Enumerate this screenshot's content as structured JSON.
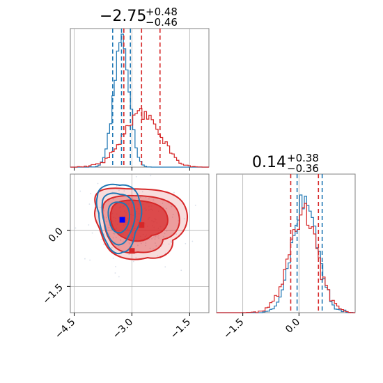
{
  "chart_data": [
    {
      "type": "histogram",
      "panel": "x-marginal",
      "title": {
        "main": "−2.75",
        "sup": "+0.48",
        "sub": "−0.46"
      },
      "xlim": [
        -4.6,
        -1.0
      ],
      "xticks": [
        -4.5,
        -3.0,
        -1.5
      ],
      "series": [
        {
          "color": "#1f77b4",
          "mean": -3.27,
          "sd": 0.2,
          "peak_x": -3.25,
          "quantiles": [
            -3.5,
            -3.04
          ]
        },
        {
          "color": "#d62728",
          "mean": -2.75,
          "sd": 0.46,
          "peak_x": -2.75,
          "quantiles": [
            -3.21,
            -2.27
          ]
        }
      ]
    },
    {
      "type": "contour",
      "panel": "joint",
      "xlim": [
        -4.6,
        -1.0
      ],
      "ylim": [
        -2.2,
        1.5
      ],
      "xticks": [
        -4.5,
        -3.0,
        -1.5
      ],
      "yticks": [
        0.0,
        -1.5
      ],
      "xtick_labels": [
        "−4.5",
        "−3.0",
        "−1.5"
      ],
      "ytick_labels": [
        "0.0",
        "−1.5"
      ],
      "markers": [
        {
          "color": "#0000ff",
          "x": -3.25,
          "y": 0.28
        },
        {
          "color": "#d62728",
          "x": -2.75,
          "y": 0.14
        },
        {
          "color": "#d62728",
          "x": -3.0,
          "y": -0.55
        }
      ],
      "series": [
        {
          "color": "#1f77b4",
          "center": [
            -3.27,
            0.14
          ]
        },
        {
          "color": "#d62728",
          "center": [
            -2.75,
            0.14
          ]
        }
      ]
    },
    {
      "type": "histogram",
      "panel": "y-marginal",
      "title": {
        "main": "0.14",
        "sup": "+0.38",
        "sub": "−0.36"
      },
      "xlim": [
        -2.2,
        1.5
      ],
      "xticks": [
        -1.5,
        0.0
      ],
      "xtick_labels": [
        "−1.5",
        "0.0"
      ],
      "series": [
        {
          "color": "#1f77b4",
          "mean": 0.16,
          "sd": 0.33,
          "quantiles": [
            -0.05,
            0.62
          ]
        },
        {
          "color": "#d62728",
          "mean": 0.12,
          "sd": 0.38,
          "quantiles": [
            -0.22,
            0.52
          ]
        }
      ]
    }
  ],
  "colors": {
    "blue": "#1f77b4",
    "red": "#d62728",
    "grid": "#b0b0b0"
  }
}
